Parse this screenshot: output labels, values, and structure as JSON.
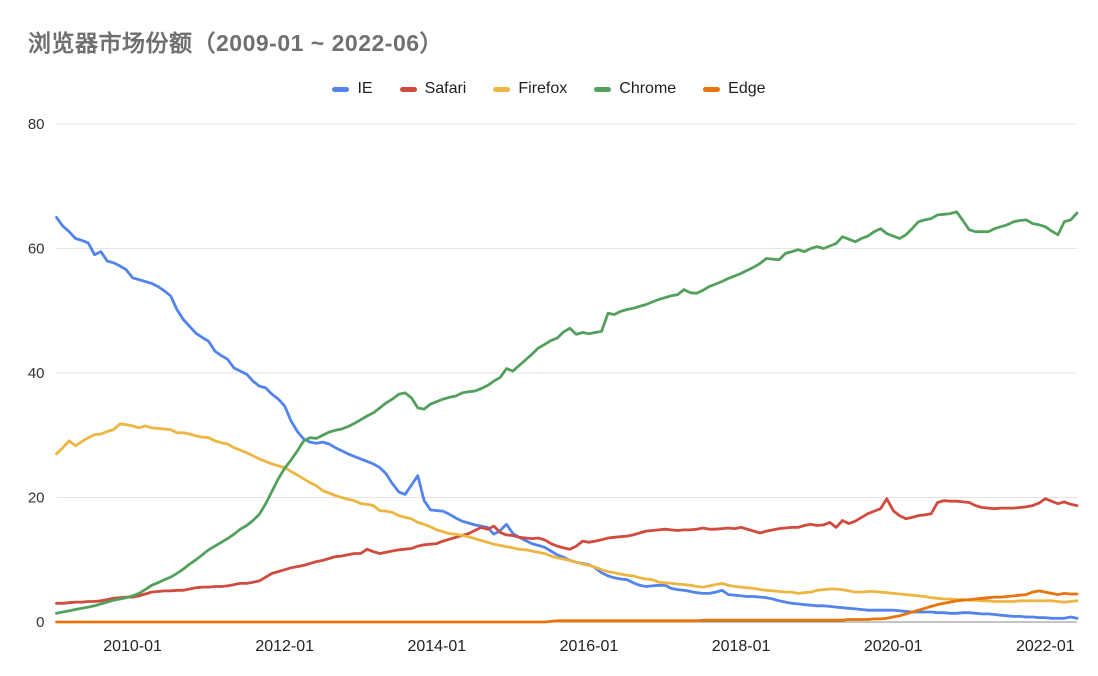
{
  "title": "浏览器市场份额（2009-01 ~ 2022-06）",
  "axis": {
    "grid_color": "#e4e4e4",
    "baseline_color": "#8a8a8a",
    "tick_label_color": "#333333"
  },
  "chart_data": {
    "type": "line",
    "title": "浏览器市场份额（2009-01 ~ 2022-06）",
    "x_start": "2009-01",
    "x_end": "2022-06",
    "x_interval": "monthly",
    "x_tick_labels": [
      "2010-01",
      "2012-01",
      "2014-01",
      "2016-01",
      "2018-01",
      "2020-01",
      "2022-01"
    ],
    "xlabel": "",
    "ylabel": "",
    "y_ticks": [
      0,
      20,
      40,
      60,
      80
    ],
    "ylim": [
      0,
      80
    ],
    "grid": "horizontal",
    "legend_position": "top",
    "series": [
      {
        "name": "IE",
        "color": "#5383EC",
        "values": [
          65.0,
          63.6,
          62.7,
          61.6,
          61.3,
          60.9,
          59.0,
          59.5,
          58.0,
          57.7,
          57.2,
          56.6,
          55.3,
          55.0,
          54.7,
          54.4,
          53.9,
          53.2,
          52.4,
          50.2,
          48.6,
          47.5,
          46.4,
          45.7,
          45.1,
          43.5,
          42.8,
          42.2,
          40.8,
          40.3,
          39.8,
          38.7,
          37.9,
          37.6,
          36.6,
          35.8,
          34.7,
          32.3,
          30.6,
          29.4,
          28.9,
          28.7,
          28.9,
          28.6,
          28.0,
          27.5,
          27.0,
          26.6,
          26.2,
          25.8,
          25.4,
          24.8,
          23.8,
          22.2,
          20.9,
          20.5,
          22.0,
          23.5,
          19.5,
          18.0,
          17.9,
          17.8,
          17.3,
          16.7,
          16.2,
          15.9,
          15.6,
          15.4,
          15.2,
          14.1,
          14.7,
          15.7,
          14.2,
          13.6,
          13.1,
          12.6,
          12.3,
          12.0,
          11.4,
          10.8,
          10.4,
          9.9,
          9.6,
          9.4,
          9.2,
          8.7,
          7.9,
          7.4,
          7.1,
          6.9,
          6.8,
          6.3,
          5.9,
          5.7,
          5.8,
          5.9,
          5.9,
          5.4,
          5.2,
          5.1,
          4.9,
          4.7,
          4.6,
          4.6,
          4.8,
          5.1,
          4.4,
          4.3,
          4.2,
          4.1,
          4.1,
          4.0,
          3.9,
          3.7,
          3.4,
          3.2,
          3.0,
          2.9,
          2.8,
          2.7,
          2.6,
          2.6,
          2.5,
          2.4,
          2.3,
          2.2,
          2.1,
          2.0,
          1.9,
          1.9,
          1.9,
          1.9,
          1.9,
          1.8,
          1.7,
          1.6,
          1.6,
          1.6,
          1.6,
          1.5,
          1.5,
          1.4,
          1.4,
          1.5,
          1.5,
          1.4,
          1.3,
          1.3,
          1.2,
          1.1,
          1.0,
          0.9,
          0.9,
          0.8,
          0.8,
          0.7,
          0.7,
          0.6,
          0.6,
          0.6,
          0.8,
          0.6
        ]
      },
      {
        "name": "Safari",
        "color": "#D04B3E",
        "values": [
          3.0,
          3.0,
          3.1,
          3.2,
          3.2,
          3.3,
          3.3,
          3.4,
          3.6,
          3.8,
          3.9,
          4.0,
          4.0,
          4.2,
          4.5,
          4.8,
          4.9,
          5.0,
          5.0,
          5.1,
          5.1,
          5.3,
          5.5,
          5.6,
          5.6,
          5.7,
          5.7,
          5.8,
          6.0,
          6.2,
          6.2,
          6.4,
          6.6,
          7.2,
          7.8,
          8.1,
          8.4,
          8.7,
          8.9,
          9.1,
          9.4,
          9.7,
          9.9,
          10.2,
          10.5,
          10.6,
          10.8,
          11.0,
          11.0,
          11.7,
          11.3,
          11.0,
          11.2,
          11.4,
          11.6,
          11.7,
          11.8,
          12.2,
          12.4,
          12.5,
          12.6,
          13.0,
          13.3,
          13.6,
          13.9,
          14.2,
          14.7,
          15.2,
          14.9,
          15.4,
          14.4,
          14.0,
          13.9,
          13.6,
          13.5,
          13.4,
          13.5,
          13.2,
          12.6,
          12.2,
          11.9,
          11.7,
          12.2,
          13.0,
          12.8,
          13.0,
          13.2,
          13.5,
          13.6,
          13.7,
          13.8,
          14.0,
          14.3,
          14.6,
          14.7,
          14.8,
          14.9,
          14.8,
          14.7,
          14.8,
          14.8,
          14.9,
          15.1,
          14.9,
          14.9,
          15.0,
          15.1,
          15.0,
          15.2,
          14.9,
          14.6,
          14.3,
          14.6,
          14.8,
          15.0,
          15.1,
          15.2,
          15.2,
          15.5,
          15.7,
          15.5,
          15.6,
          16.0,
          15.2,
          16.3,
          15.8,
          16.2,
          16.8,
          17.4,
          17.8,
          18.2,
          19.8,
          17.9,
          17.1,
          16.6,
          16.8,
          17.1,
          17.2,
          17.4,
          19.2,
          19.5,
          19.4,
          19.4,
          19.3,
          19.2,
          18.7,
          18.4,
          18.3,
          18.2,
          18.3,
          18.3,
          18.3,
          18.4,
          18.5,
          18.7,
          19.1,
          19.8,
          19.4,
          19.0,
          19.3,
          18.9,
          18.7
        ]
      },
      {
        "name": "Firefox",
        "color": "#EDB642",
        "values": [
          27.0,
          28.0,
          29.1,
          28.3,
          29.0,
          29.6,
          30.1,
          30.2,
          30.6,
          30.9,
          31.8,
          31.7,
          31.5,
          31.2,
          31.5,
          31.2,
          31.1,
          31.0,
          30.9,
          30.4,
          30.4,
          30.2,
          29.9,
          29.7,
          29.6,
          29.1,
          28.8,
          28.6,
          28.0,
          27.6,
          27.2,
          26.7,
          26.2,
          25.8,
          25.4,
          25.1,
          24.8,
          24.2,
          23.6,
          23.0,
          22.4,
          21.9,
          21.1,
          20.7,
          20.3,
          20.0,
          19.7,
          19.5,
          19.0,
          18.9,
          18.7,
          17.9,
          17.8,
          17.6,
          17.1,
          16.8,
          16.6,
          16.0,
          15.7,
          15.3,
          14.8,
          14.5,
          14.2,
          14.1,
          13.9,
          13.7,
          13.4,
          13.1,
          12.8,
          12.5,
          12.3,
          12.1,
          11.9,
          11.7,
          11.6,
          11.4,
          11.2,
          11.0,
          10.6,
          10.3,
          10.1,
          9.9,
          9.6,
          9.3,
          9.1,
          8.8,
          8.4,
          8.1,
          7.9,
          7.7,
          7.5,
          7.4,
          7.1,
          6.9,
          6.8,
          6.4,
          6.3,
          6.2,
          6.1,
          6.0,
          5.9,
          5.7,
          5.6,
          5.8,
          6.0,
          6.2,
          5.9,
          5.7,
          5.6,
          5.5,
          5.4,
          5.2,
          5.1,
          5.0,
          4.9,
          4.8,
          4.8,
          4.6,
          4.7,
          4.8,
          5.1,
          5.2,
          5.3,
          5.3,
          5.2,
          5.0,
          4.8,
          4.8,
          4.9,
          4.9,
          4.8,
          4.7,
          4.6,
          4.5,
          4.4,
          4.3,
          4.2,
          4.1,
          3.9,
          3.8,
          3.7,
          3.7,
          3.6,
          3.6,
          3.5,
          3.5,
          3.4,
          3.4,
          3.3,
          3.3,
          3.3,
          3.3,
          3.4,
          3.4,
          3.4,
          3.4,
          3.4,
          3.4,
          3.3,
          3.2,
          3.3,
          3.4
        ]
      },
      {
        "name": "Chrome",
        "color": "#53A05C",
        "values": [
          1.4,
          1.6,
          1.8,
          2.0,
          2.2,
          2.4,
          2.6,
          2.9,
          3.2,
          3.5,
          3.7,
          3.9,
          4.2,
          4.6,
          5.2,
          5.9,
          6.3,
          6.8,
          7.2,
          7.8,
          8.5,
          9.3,
          10.0,
          10.8,
          11.6,
          12.2,
          12.8,
          13.4,
          14.1,
          14.9,
          15.5,
          16.3,
          17.3,
          19.0,
          21.0,
          23.0,
          24.7,
          26.0,
          27.5,
          29.1,
          29.6,
          29.5,
          30.0,
          30.5,
          30.8,
          31.0,
          31.4,
          31.9,
          32.5,
          33.1,
          33.6,
          34.4,
          35.2,
          35.8,
          36.6,
          36.8,
          36.0,
          34.4,
          34.2,
          35.0,
          35.4,
          35.8,
          36.1,
          36.3,
          36.8,
          37.0,
          37.1,
          37.5,
          38.0,
          38.7,
          39.3,
          40.7,
          40.3,
          41.2,
          42.1,
          43.0,
          44.0,
          44.6,
          45.2,
          45.6,
          46.6,
          47.2,
          46.2,
          46.5,
          46.3,
          46.5,
          46.7,
          49.6,
          49.4,
          49.9,
          50.2,
          50.4,
          50.7,
          51.0,
          51.4,
          51.8,
          52.1,
          52.4,
          52.6,
          53.4,
          52.9,
          52.8,
          53.3,
          53.9,
          54.3,
          54.7,
          55.2,
          55.6,
          56.0,
          56.5,
          57.0,
          57.6,
          58.4,
          58.3,
          58.2,
          59.2,
          59.5,
          59.8,
          59.5,
          60.0,
          60.3,
          60.0,
          60.4,
          60.8,
          61.9,
          61.5,
          61.1,
          61.6,
          62.0,
          62.7,
          63.2,
          62.4,
          62.0,
          61.6,
          62.2,
          63.2,
          64.3,
          64.6,
          64.8,
          65.4,
          65.5,
          65.6,
          65.9,
          64.5,
          63.0,
          62.7,
          62.7,
          62.7,
          63.2,
          63.5,
          63.8,
          64.3,
          64.5,
          64.6,
          64.0,
          63.8,
          63.5,
          62.8,
          62.2,
          64.3,
          64.6,
          65.7
        ]
      },
      {
        "name": "Edge",
        "color": "#E8740C",
        "values": [
          0,
          0,
          0,
          0,
          0,
          0,
          0,
          0,
          0,
          0,
          0,
          0,
          0,
          0,
          0,
          0,
          0,
          0,
          0,
          0,
          0,
          0,
          0,
          0,
          0,
          0,
          0,
          0,
          0,
          0,
          0,
          0,
          0,
          0,
          0,
          0,
          0,
          0,
          0,
          0,
          0,
          0,
          0,
          0,
          0,
          0,
          0,
          0,
          0,
          0,
          0,
          0,
          0,
          0,
          0,
          0,
          0,
          0,
          0,
          0,
          0,
          0,
          0,
          0,
          0,
          0,
          0,
          0,
          0,
          0,
          0,
          0,
          0,
          0,
          0,
          0,
          0,
          0,
          0.1,
          0.2,
          0.2,
          0.2,
          0.2,
          0.2,
          0.2,
          0.2,
          0.2,
          0.2,
          0.2,
          0.2,
          0.2,
          0.2,
          0.2,
          0.2,
          0.2,
          0.2,
          0.2,
          0.2,
          0.2,
          0.2,
          0.2,
          0.2,
          0.3,
          0.3,
          0.3,
          0.3,
          0.3,
          0.3,
          0.3,
          0.3,
          0.3,
          0.3,
          0.3,
          0.3,
          0.3,
          0.3,
          0.3,
          0.3,
          0.3,
          0.3,
          0.3,
          0.3,
          0.3,
          0.3,
          0.3,
          0.4,
          0.4,
          0.4,
          0.4,
          0.5,
          0.5,
          0.6,
          0.8,
          1.0,
          1.3,
          1.6,
          1.9,
          2.2,
          2.5,
          2.8,
          3.0,
          3.2,
          3.4,
          3.5,
          3.6,
          3.7,
          3.8,
          3.9,
          4.0,
          4.0,
          4.1,
          4.2,
          4.3,
          4.4,
          4.8,
          5.0,
          4.8,
          4.6,
          4.4,
          4.6,
          4.5,
          4.5
        ]
      }
    ]
  }
}
